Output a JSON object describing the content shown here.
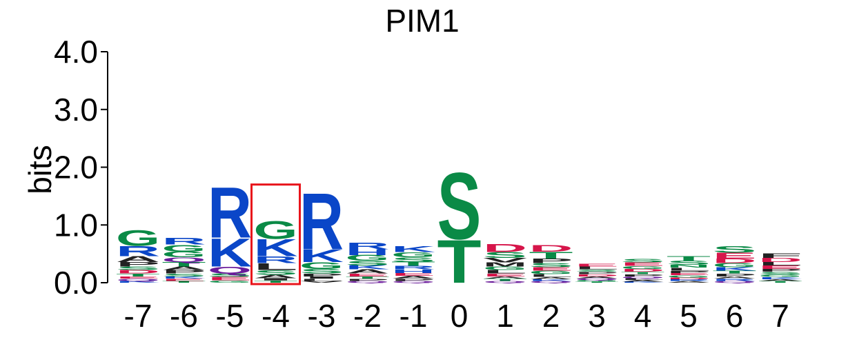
{
  "chart_data": {
    "type": "sequence-logo",
    "title": "PIM1",
    "ylabel": "bits",
    "xlabel": "",
    "ylim": [
      0,
      4.0
    ],
    "y_ticks": [
      "0.0",
      "1.0",
      "2.0",
      "3.0",
      "4.0"
    ],
    "y_tick_values": [
      0,
      1,
      2,
      3,
      4
    ],
    "positions": [
      "-7",
      "-6",
      "-5",
      "-4",
      "-3",
      "-2",
      "-1",
      "0",
      "1",
      "2",
      "3",
      "4",
      "5",
      "6",
      "7"
    ],
    "highlighted_position": "-4",
    "highlight_color": "#e8141b",
    "residue_colors": {
      "R": "#0a46c8",
      "K": "#0a46c8",
      "H": "#0a46c8",
      "G": "#0a8a46",
      "S": "#0a8a46",
      "T": "#0a8a46",
      "Y": "#0a8a46",
      "C": "#0a8a46",
      "N": "#0a8a46",
      "Q": "#6a1a9a",
      "D": "#d6154a",
      "E": "#d6154a",
      "A": "#222222",
      "P": "#222222",
      "L": "#222222",
      "I": "#222222",
      "V": "#222222",
      "M": "#222222",
      "F": "#222222",
      "W": "#222222"
    },
    "columns": [
      {
        "position": "-7",
        "letters": [
          {
            "letter": "G",
            "bits": 0.28
          },
          {
            "letter": "R",
            "bits": 0.18
          },
          {
            "letter": "A",
            "bits": 0.1
          },
          {
            "letter": "P",
            "bits": 0.08
          },
          {
            "letter": "D",
            "bits": 0.06
          },
          {
            "letter": "S",
            "bits": 0.06
          },
          {
            "letter": "T",
            "bits": 0.05
          },
          {
            "letter": "Q",
            "bits": 0.04
          },
          {
            "letter": "E",
            "bits": 0.04
          },
          {
            "letter": "K",
            "bits": 0.03
          }
        ]
      },
      {
        "position": "-6",
        "letters": [
          {
            "letter": "G",
            "bits": 0.12
          },
          {
            "letter": "R",
            "bits": 0.12
          },
          {
            "letter": "G",
            "bits": 0.1
          },
          {
            "letter": "T",
            "bits": 0.08
          },
          {
            "letter": "Q",
            "bits": 0.08
          },
          {
            "letter": "P",
            "bits": 0.06
          },
          {
            "letter": "A",
            "bits": 0.06
          },
          {
            "letter": "S",
            "bits": 0.05
          },
          {
            "letter": "E",
            "bits": 0.04
          },
          {
            "letter": "K",
            "bits": 0.04
          },
          {
            "letter": "T",
            "bits": 0.03
          }
        ]
      },
      {
        "position": "-5",
        "letters": [
          {
            "letter": "R",
            "bits": 0.9
          },
          {
            "letter": "K",
            "bits": 0.5
          },
          {
            "letter": "Q",
            "bits": 0.12
          },
          {
            "letter": "E",
            "bits": 0.06
          },
          {
            "letter": "S",
            "bits": 0.06
          },
          {
            "letter": "G",
            "bits": 0.04
          }
        ]
      },
      {
        "position": "-4",
        "letters": [
          {
            "letter": "G",
            "bits": 0.32
          },
          {
            "letter": "K",
            "bits": 0.3
          },
          {
            "letter": "L",
            "bits": 0.12
          },
          {
            "letter": "A",
            "bits": 0.06
          },
          {
            "letter": "R",
            "bits": 0.12
          },
          {
            "letter": "S",
            "bits": 0.08
          },
          {
            "letter": "T",
            "bits": 0.04
          },
          {
            "letter": "I",
            "bits": 0.04
          }
        ]
      },
      {
        "position": "-3",
        "letters": [
          {
            "letter": "R",
            "bits": 1.0
          },
          {
            "letter": "K",
            "bits": 0.22
          },
          {
            "letter": "G",
            "bits": 0.12
          },
          {
            "letter": "S",
            "bits": 0.08
          },
          {
            "letter": "P",
            "bits": 0.05
          },
          {
            "letter": "L",
            "bits": 0.04
          },
          {
            "letter": "I",
            "bits": 0.04
          },
          {
            "letter": "V",
            "bits": 0.03
          }
        ]
      },
      {
        "position": "-2",
        "letters": [
          {
            "letter": "R",
            "bits": 0.12
          },
          {
            "letter": "G",
            "bits": 0.1
          },
          {
            "letter": "H",
            "bits": 0.1
          },
          {
            "letter": "S",
            "bits": 0.08
          },
          {
            "letter": "A",
            "bits": 0.07
          },
          {
            "letter": "K",
            "bits": 0.07
          },
          {
            "letter": "E",
            "bits": 0.05
          },
          {
            "letter": "P",
            "bits": 0.04
          },
          {
            "letter": "T",
            "bits": 0.04
          },
          {
            "letter": "Q",
            "bits": 0.03
          }
        ]
      },
      {
        "position": "-1",
        "letters": [
          {
            "letter": "K",
            "bits": 0.1
          },
          {
            "letter": "G",
            "bits": 0.09
          },
          {
            "letter": "S",
            "bits": 0.08
          },
          {
            "letter": "T",
            "bits": 0.07
          },
          {
            "letter": "H",
            "bits": 0.06
          },
          {
            "letter": "R",
            "bits": 0.06
          },
          {
            "letter": "A",
            "bits": 0.05
          },
          {
            "letter": "E",
            "bits": 0.05
          },
          {
            "letter": "P",
            "bits": 0.04
          },
          {
            "letter": "Q",
            "bits": 0.03
          }
        ]
      },
      {
        "position": "0",
        "letters": [
          {
            "letter": "S",
            "bits": 1.18
          },
          {
            "letter": "T",
            "bits": 0.76
          }
        ]
      },
      {
        "position": "1",
        "letters": [
          {
            "letter": "D",
            "bits": 0.14
          },
          {
            "letter": "S",
            "bits": 0.1
          },
          {
            "letter": "V",
            "bits": 0.08
          },
          {
            "letter": "M",
            "bits": 0.07
          },
          {
            "letter": "L",
            "bits": 0.06
          },
          {
            "letter": "G",
            "bits": 0.06
          },
          {
            "letter": "E",
            "bits": 0.05
          },
          {
            "letter": "T",
            "bits": 0.04
          },
          {
            "letter": "A",
            "bits": 0.04
          },
          {
            "letter": "Q",
            "bits": 0.03
          }
        ]
      },
      {
        "position": "2",
        "letters": [
          {
            "letter": "T",
            "bits": 0.12
          },
          {
            "letter": "D",
            "bits": 0.12
          },
          {
            "letter": "P",
            "bits": 0.08
          },
          {
            "letter": "S",
            "bits": 0.07
          },
          {
            "letter": "G",
            "bits": 0.06
          },
          {
            "letter": "E",
            "bits": 0.06
          },
          {
            "letter": "L",
            "bits": 0.05
          },
          {
            "letter": "A",
            "bits": 0.04
          },
          {
            "letter": "Q",
            "bits": 0.03
          },
          {
            "letter": "K",
            "bits": 0.03
          }
        ]
      },
      {
        "position": "3",
        "letters": [
          {
            "letter": "L",
            "bits": 0.05
          },
          {
            "letter": "E",
            "bits": 0.05
          },
          {
            "letter": "D",
            "bits": 0.04
          },
          {
            "letter": "P",
            "bits": 0.04
          },
          {
            "letter": "S",
            "bits": 0.04
          },
          {
            "letter": "G",
            "bits": 0.03
          },
          {
            "letter": "Q",
            "bits": 0.03
          },
          {
            "letter": "A",
            "bits": 0.03
          },
          {
            "letter": "T",
            "bits": 0.02
          }
        ]
      },
      {
        "position": "4",
        "letters": [
          {
            "letter": "E",
            "bits": 0.06
          },
          {
            "letter": "S",
            "bits": 0.06
          },
          {
            "letter": "D",
            "bits": 0.05
          },
          {
            "letter": "G",
            "bits": 0.05
          },
          {
            "letter": "P",
            "bits": 0.04
          },
          {
            "letter": "T",
            "bits": 0.04
          },
          {
            "letter": "A",
            "bits": 0.03
          },
          {
            "letter": "L",
            "bits": 0.03
          },
          {
            "letter": "Q",
            "bits": 0.03
          },
          {
            "letter": "K",
            "bits": 0.02
          }
        ]
      },
      {
        "position": "5",
        "letters": [
          {
            "letter": "T",
            "bits": 0.08
          },
          {
            "letter": "S",
            "bits": 0.07
          },
          {
            "letter": "L",
            "bits": 0.05
          },
          {
            "letter": "N",
            "bits": 0.05
          },
          {
            "letter": "G",
            "bits": 0.04
          },
          {
            "letter": "E",
            "bits": 0.04
          },
          {
            "letter": "P",
            "bits": 0.04
          },
          {
            "letter": "A",
            "bits": 0.03
          },
          {
            "letter": "R",
            "bits": 0.03
          },
          {
            "letter": "D",
            "bits": 0.03
          }
        ]
      },
      {
        "position": "6",
        "letters": [
          {
            "letter": "S",
            "bits": 0.12
          },
          {
            "letter": "E",
            "bits": 0.1
          },
          {
            "letter": "D",
            "bits": 0.08
          },
          {
            "letter": "G",
            "bits": 0.07
          },
          {
            "letter": "K",
            "bits": 0.06
          },
          {
            "letter": "P",
            "bits": 0.05
          },
          {
            "letter": "T",
            "bits": 0.05
          },
          {
            "letter": "R",
            "bits": 0.04
          },
          {
            "letter": "A",
            "bits": 0.04
          },
          {
            "letter": "Q",
            "bits": 0.03
          }
        ]
      },
      {
        "position": "7",
        "letters": [
          {
            "letter": "F",
            "bits": 0.08
          },
          {
            "letter": "D",
            "bits": 0.07
          },
          {
            "letter": "E",
            "bits": 0.06
          },
          {
            "letter": "L",
            "bits": 0.06
          },
          {
            "letter": "S",
            "bits": 0.05
          },
          {
            "letter": "P",
            "bits": 0.05
          },
          {
            "letter": "K",
            "bits": 0.04
          },
          {
            "letter": "G",
            "bits": 0.04
          },
          {
            "letter": "T",
            "bits": 0.03
          },
          {
            "letter": "A",
            "bits": 0.03
          }
        ]
      }
    ]
  }
}
